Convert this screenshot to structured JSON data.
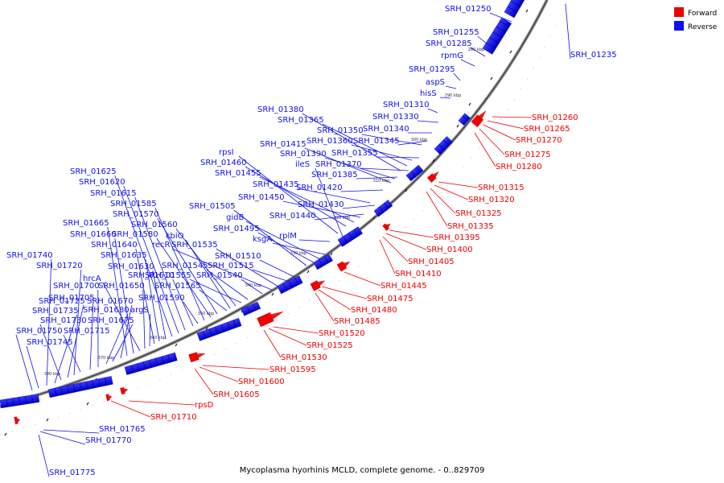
{
  "caption": "Mycoplasma hyorhinis MCLD, complete genome. - 0..829709",
  "legend": {
    "forward": {
      "label": "Forward",
      "color": "#ee0000"
    },
    "reverse": {
      "label": "Reverse",
      "color": "#1010ee"
    }
  },
  "ticks": [
    "280 kbp",
    "290 kbp",
    "300 kbp",
    "310 kbp",
    "320 kbp",
    "330 kbp",
    "340 kbp",
    "350 kbp",
    "360 kbp",
    "370 kbp",
    "380 kbp"
  ],
  "reverse_labels": [
    "SRH_01235",
    "SRH_01250",
    "SRH_01255",
    "SRH_01285",
    "rpmG",
    "SRH_01295",
    "aspS",
    "hisS",
    "SRH_01310",
    "SRH_01330",
    "SRH_01340",
    "SRH_01345",
    "SRH_01350",
    "SRH_01355",
    "SRH_01360",
    "SRH_01365",
    "SRH_01370",
    "SRH_01380",
    "SRH_01385",
    "SRH_01390",
    "SRH_01415",
    "SRH_01420",
    "SRH_01430",
    "SRH_01435",
    "SRH_01440",
    "SRH_01450",
    "SRH_01455",
    "SRH_01460",
    "rpsI",
    "ileS",
    "rplM",
    "ksgA",
    "gidB",
    "SRH_01495",
    "SRH_01505",
    "SRH_01510",
    "SRH_01515",
    "SRH_01535",
    "recR",
    "SRH_01540",
    "SRH_01545",
    "SRH_01555",
    "SRH_01560",
    "cbiO",
    "SRH_01565",
    "SRH_01570",
    "SRH_01580",
    "SRH_01585",
    "SRH_01590",
    "SRH_01610",
    "SRH_01615",
    "SRH_01620",
    "SRH_01625",
    "SRH_01630",
    "SRH_01635",
    "SRH_01640",
    "argS",
    "SRH_01650",
    "hrcA",
    "SRH_01660",
    "SRH_01665",
    "SRH_01670",
    "SRH_01675",
    "SRH_01680",
    "SRH_01700",
    "SRH_01705",
    "SRH_01715",
    "SRH_01720",
    "SRH_01725",
    "SRH_01730",
    "SRH_01735",
    "SRH_01740",
    "SRH_01745",
    "SRH_01750",
    "SRH_01765",
    "SRH_01770",
    "SRH_01775"
  ],
  "forward_labels": [
    "SRH_01260",
    "SRH_01265",
    "SRH_01270",
    "SRH_01275",
    "SRH_01280",
    "SRH_01315",
    "SRH_01320",
    "SRH_01325",
    "SRH_01335",
    "SRH_01395",
    "SRH_01400",
    "SRH_01405",
    "SRH_01410",
    "SRH_01445",
    "SRH_01475",
    "SRH_01480",
    "SRH_01485",
    "SRH_01520",
    "SRH_01525",
    "SRH_01530",
    "SRH_01595",
    "SRH_01600",
    "SRH_01605",
    "rpsD",
    "SRH_01710"
  ]
}
